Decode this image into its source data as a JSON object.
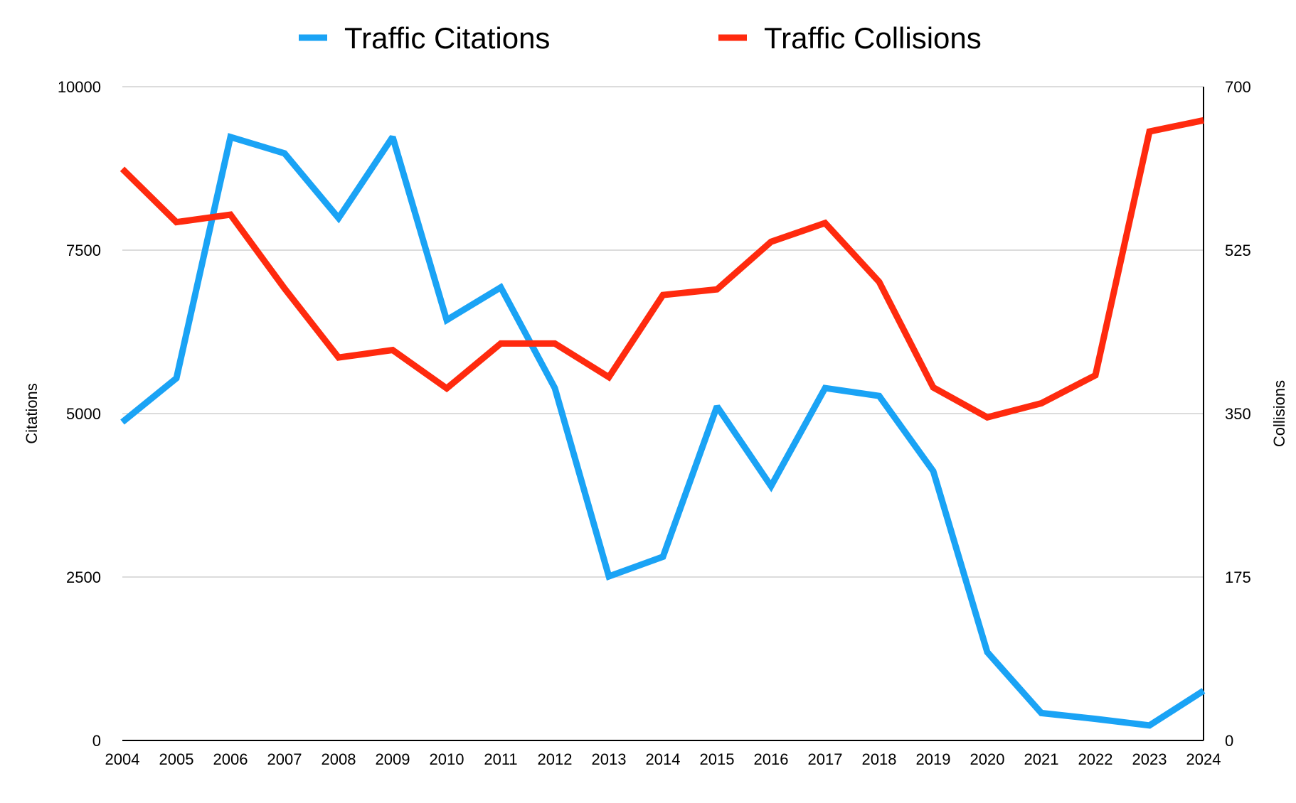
{
  "chart_data": {
    "type": "line",
    "x": [
      "2004",
      "2005",
      "2006",
      "2007",
      "2008",
      "2009",
      "2010",
      "2011",
      "2012",
      "2013",
      "2014",
      "2015",
      "2016",
      "2017",
      "2018",
      "2019",
      "2020",
      "2021",
      "2022",
      "2023",
      "2024"
    ],
    "series": [
      {
        "name": "Traffic Citations",
        "axis": "left",
        "color": "#1aa3f5",
        "values": [
          4870,
          5540,
          9230,
          8980,
          7990,
          9230,
          6430,
          6930,
          5390,
          2510,
          2810,
          5110,
          3890,
          5390,
          5270,
          4120,
          1350,
          420,
          330,
          230,
          760
        ]
      },
      {
        "name": "Traffic Collisions",
        "axis": "right",
        "color": "#ff2a0e",
        "values": [
          612,
          555,
          563,
          484,
          410,
          418,
          377,
          425,
          425,
          389,
          477,
          483,
          534,
          554,
          491,
          378,
          346,
          361,
          391,
          652,
          664
        ]
      }
    ],
    "ylabel_left": "Citations",
    "ylabel_right": "Collisions",
    "ylim_left": [
      0,
      10000
    ],
    "ylim_right": [
      0,
      700
    ],
    "yticks_left": [
      "0",
      "2500",
      "5000",
      "7500",
      "10000"
    ],
    "yticks_right": [
      "0",
      "175",
      "350",
      "525",
      "700"
    ],
    "grid": true,
    "legend": "top-center"
  }
}
